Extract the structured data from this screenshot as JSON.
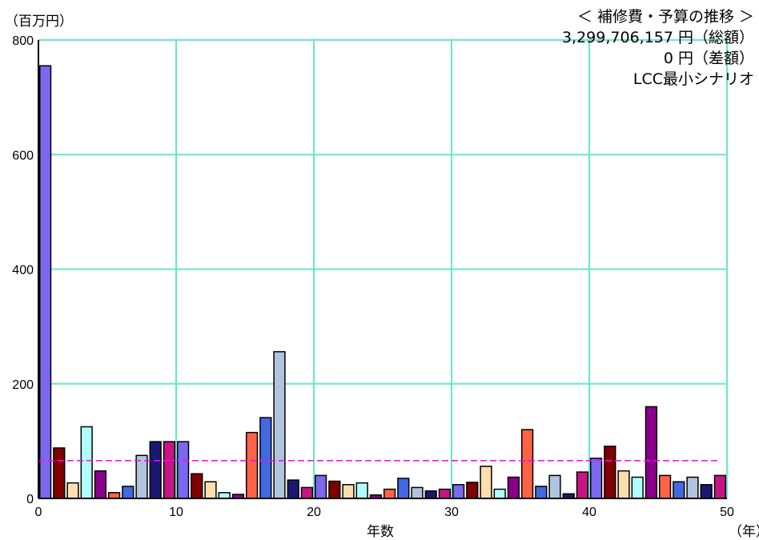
{
  "chart_data": {
    "type": "bar",
    "title_lines": [
      "＜ 補修費・予算の推移 ＞",
      "3,299,706,157 円（総額）",
      "0 円（差額）",
      "LCC最小シナリオ"
    ],
    "ylabel": "（百万円）",
    "xlabel": "年数",
    "x_unit": "（年）",
    "xlim": [
      0,
      50
    ],
    "ylim": [
      0,
      800
    ],
    "xticks": [
      0,
      10,
      20,
      30,
      40,
      50
    ],
    "yticks": [
      0,
      200,
      400,
      600,
      800
    ],
    "grid": true,
    "budget_line": 66,
    "colors": {
      "grid": "#66e8c8",
      "budget_line": "#ff00ff",
      "bar_palette": [
        "#7b68ee",
        "#800000",
        "#ffdead",
        "#b0ffff",
        "#8b008b",
        "#ff6347",
        "#4169e1",
        "#b0c4de",
        "#191970",
        "#c71585"
      ]
    },
    "x": [
      0,
      1,
      2,
      3,
      4,
      5,
      6,
      7,
      8,
      9,
      10,
      11,
      12,
      13,
      14,
      15,
      16,
      17,
      18,
      19,
      20,
      21,
      22,
      23,
      24,
      25,
      26,
      27,
      28,
      29,
      30,
      31,
      32,
      33,
      34,
      35,
      36,
      37,
      38,
      39,
      40,
      41,
      42,
      43,
      44,
      45,
      46,
      47,
      48,
      49
    ],
    "values": [
      755,
      88,
      27,
      125,
      48,
      10,
      21,
      75,
      99,
      99,
      99,
      43,
      29,
      10,
      7,
      115,
      141,
      256,
      32,
      19,
      40,
      30,
      24,
      27,
      6,
      16,
      35,
      19,
      13,
      16,
      24,
      28,
      56,
      16,
      37,
      120,
      21,
      40,
      8,
      46,
      70,
      91,
      48,
      37,
      160,
      40,
      29,
      37,
      24,
      40
    ],
    "bar_colors": [
      "#7b68ee",
      "#800000",
      "#ffdead",
      "#b0ffff",
      "#8b008b",
      "#ff6347",
      "#4169e1",
      "#b0c4de",
      "#191970",
      "#c71585",
      "#7b68ee",
      "#800000",
      "#ffdead",
      "#b0ffff",
      "#8b008b",
      "#ff6347",
      "#4169e1",
      "#b0c4de",
      "#191970",
      "#c71585",
      "#7b68ee",
      "#800000",
      "#ffdead",
      "#b0ffff",
      "#8b008b",
      "#ff6347",
      "#4169e1",
      "#b0c4de",
      "#191970",
      "#c71585",
      "#7b68ee",
      "#800000",
      "#ffdead",
      "#b0ffff",
      "#8b008b",
      "#ff6347",
      "#4169e1",
      "#b0c4de",
      "#191970",
      "#c71585",
      "#7b68ee",
      "#800000",
      "#ffdead",
      "#b0ffff",
      "#8b008b",
      "#ff6347",
      "#4169e1",
      "#b0c4de",
      "#191970",
      "#c71585"
    ]
  }
}
